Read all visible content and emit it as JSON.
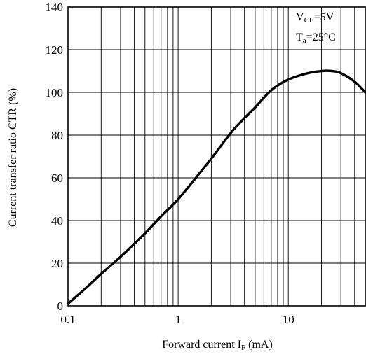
{
  "chart_data": {
    "type": "line",
    "title": "",
    "xlabel": {
      "main": "Forward current I",
      "sub": "F",
      "suffix": " (mA)"
    },
    "ylabel": "Current transfer ratio CTR (%)",
    "xscale": "log",
    "xlim": [
      0.1,
      50
    ],
    "ylim": [
      0,
      140
    ],
    "xticks": [
      0.1,
      1,
      10
    ],
    "xtick_labels": [
      "0.1",
      "1",
      "10"
    ],
    "yticks": [
      0,
      20,
      40,
      60,
      80,
      100,
      120,
      140
    ],
    "ytick_labels": [
      "0",
      "20",
      "40",
      "60",
      "80",
      "100",
      "120",
      "140"
    ],
    "grid": true,
    "conditions": [
      {
        "main": "V",
        "sub": "CE",
        "rest": "=5V"
      },
      {
        "main": "T",
        "sub": "a",
        "rest": "=25°C"
      }
    ],
    "series": [
      {
        "x": [
          0.1,
          0.15,
          0.2,
          0.3,
          0.5,
          0.7,
          1,
          1.5,
          2,
          3,
          4,
          5,
          7,
          10,
          15,
          20,
          25,
          30,
          40,
          50
        ],
        "y": [
          1,
          9,
          15,
          23,
          34,
          42,
          50,
          61,
          69,
          81,
          88,
          93,
          101,
          106,
          109,
          110,
          110,
          109,
          105,
          100
        ]
      }
    ]
  }
}
